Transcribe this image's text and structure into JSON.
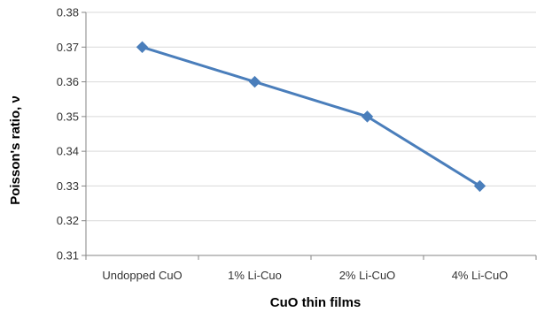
{
  "chart_data": {
    "type": "line",
    "categories": [
      "Undopped CuO",
      "1% Li-Cuo",
      "2% Li-CuO",
      "4% Li-CuO"
    ],
    "series": [
      {
        "values": [
          0.37,
          0.36,
          0.35,
          0.33
        ]
      }
    ],
    "xlabel": "CuO thin films",
    "ylabel": "Poisson's ratio, ν",
    "ylim": [
      0.31,
      0.38
    ],
    "yticks": [
      "0.31",
      "0.32",
      "0.33",
      "0.34",
      "0.35",
      "0.36",
      "0.37",
      "0.38"
    ],
    "grid": "horizontal",
    "marker": "diamond",
    "color": "#4a7ebb"
  }
}
